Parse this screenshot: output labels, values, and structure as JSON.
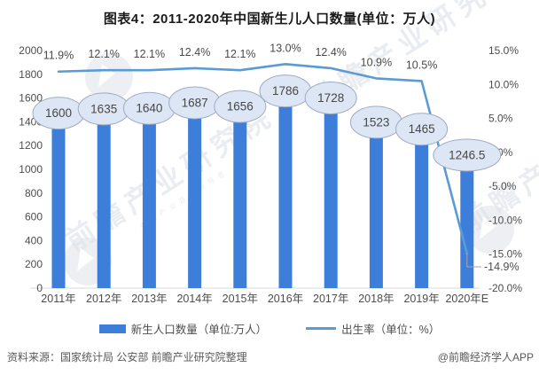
{
  "title": "图表4：2011-2020年中国新生儿人口数量(单位：万人)",
  "chart_data": {
    "type": "combo-bar-line",
    "categories": [
      "2011年",
      "2012年",
      "2013年",
      "2014年",
      "2015年",
      "2016年",
      "2017年",
      "2018年",
      "2019年",
      "2020年E"
    ],
    "series": [
      {
        "name": "新生人口数量（单位:万人）",
        "type": "bar",
        "values": [
          1600,
          1635,
          1640,
          1687,
          1656,
          1786,
          1728,
          1523,
          1465,
          1246.5
        ],
        "labels": [
          "1600",
          "1635",
          "1640",
          "1687",
          "1656",
          "1786",
          "1728",
          "1523",
          "1465",
          "1246.5"
        ],
        "color": "#3d7edb"
      },
      {
        "name": "出生率（单位：%）",
        "type": "line",
        "values": [
          11.9,
          12.1,
          12.1,
          12.4,
          12.1,
          13.0,
          12.4,
          10.9,
          10.5,
          -14.9
        ],
        "labels": [
          "11.9%",
          "12.1%",
          "12.1%",
          "12.4%",
          "12.1%",
          "13.0%",
          "12.4%",
          "10.9%",
          "10.5%",
          "-14.9%"
        ],
        "color": "#5b9bd5"
      }
    ],
    "left_axis": {
      "min": 0,
      "max": 2000,
      "tick_values": [
        2000,
        1800,
        1600,
        1400,
        1200,
        1000,
        800,
        600,
        400,
        200,
        0
      ],
      "tick_labels": [
        "2000",
        "1800",
        "1600",
        "1400",
        "1200",
        "1000",
        "800",
        "600",
        "400",
        "200",
        "0"
      ]
    },
    "right_axis": {
      "min": -20,
      "max": 15,
      "tick_values": [
        15,
        10,
        5,
        0,
        -5,
        -10,
        -15,
        -20
      ],
      "tick_labels": [
        "15.0%",
        "10.0%",
        "5.0%",
        "0.0%",
        "-5.0%",
        "-10.0%",
        "-15.0%",
        "-20.0%"
      ]
    },
    "legend_position": "bottom",
    "grid": false,
    "colors": {
      "bar": "#3d7edb",
      "line": "#5b9bd5",
      "oval_fill": "#dce6f4",
      "oval_stroke": "#9fabc2",
      "axis_text": "#4d4d4d",
      "baseline": "#d9d9d9"
    }
  },
  "watermark": {
    "diagonal_text": "前瞻产业研究院",
    "diagonal_subtext": "中国产业咨询领导者"
  },
  "footer": {
    "source": "资料来源：国家统计局 公安部 前瞻产业研究院整理",
    "credit": "@前瞻经济学人APP"
  }
}
